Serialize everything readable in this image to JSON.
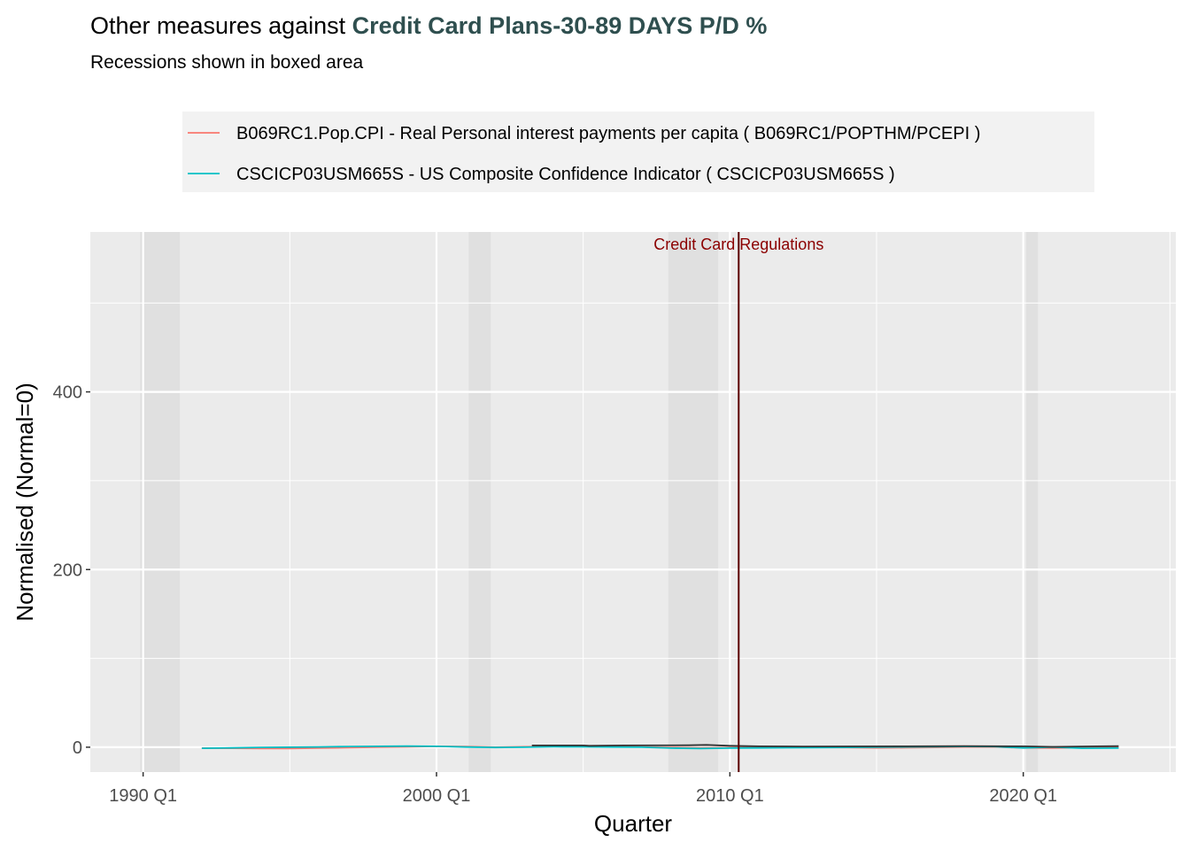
{
  "chart_data": {
    "type": "line",
    "title_prefix": "Other measures against ",
    "title_highlight": "Credit Card Plans-30-89 DAYS P/D %",
    "subtitle": "Recessions shown in boxed area",
    "xlabel": "Quarter",
    "ylabel": "Normalised (Normal=0)",
    "x_tick_labels": [
      "1990 Q1",
      "2000 Q1",
      "2010 Q1",
      "2020 Q1"
    ],
    "x_ticks": [
      1990,
      2000,
      2010,
      2020
    ],
    "y_ticks": [
      0,
      200,
      400
    ],
    "xlim": [
      1988.2,
      2025.2
    ],
    "ylim": [
      -28,
      580
    ],
    "grid": true,
    "legend_position": "top",
    "recessions": [
      [
        1989.9,
        1991.25
      ],
      [
        2001.1,
        2001.85
      ],
      [
        2007.9,
        2009.6
      ],
      [
        2020.1,
        2020.5
      ]
    ],
    "annotation": {
      "label": "Credit Card Regulations",
      "x": 2010.3,
      "color": "#8b0000"
    },
    "series": [
      {
        "name": "B069RC1.Pop.CPI - Real Personal interest payments per capita ( B069RC1/POPTHM/PCEPI )",
        "color": "#f8766d",
        "x": [
          1992.0,
          1993.0,
          1994.0,
          1995.0,
          1996.0,
          1997.0,
          1998.0,
          1999.0,
          2000.0,
          2001.0,
          2002.0,
          2003.0,
          2004.0,
          2005.0,
          2006.0,
          2007.0,
          2008.0,
          2009.0,
          2010.0,
          2011.0,
          2012.0,
          2013.0,
          2014.0,
          2015.0,
          2016.0,
          2017.0,
          2018.0,
          2019.0,
          2020.0,
          2021.0,
          2022.0,
          2023.25
        ],
        "y": [
          -1.0,
          -1.2,
          -1.4,
          -1.5,
          -0.9,
          -0.5,
          0.0,
          0.4,
          1.0,
          0.8,
          0.0,
          0.5,
          1.0,
          0.8,
          0.6,
          0.3,
          -0.2,
          -0.8,
          -0.5,
          -0.3,
          0.0,
          -0.2,
          -0.5,
          -0.8,
          -0.6,
          -0.2,
          0.2,
          0.3,
          -0.8,
          -1.0,
          -0.6,
          -0.4
        ]
      },
      {
        "name": "CSCICP03USM665S - US Composite Confidence Indicator ( CSCICP03USM665S )",
        "color": "#00bfc4",
        "x": [
          1992.0,
          1993.0,
          1994.0,
          1995.0,
          1996.0,
          1997.0,
          1998.0,
          1999.0,
          2000.0,
          2001.0,
          2002.0,
          2003.0,
          2004.0,
          2005.0,
          2006.0,
          2007.0,
          2008.0,
          2009.0,
          2010.0,
          2011.0,
          2012.0,
          2013.0,
          2014.0,
          2015.0,
          2016.0,
          2017.0,
          2018.0,
          2019.0,
          2020.0,
          2021.0,
          2022.0,
          2023.25
        ],
        "y": [
          -1.2,
          -0.8,
          -0.2,
          0.0,
          0.3,
          0.8,
          1.0,
          1.2,
          1.0,
          0.2,
          -0.3,
          0.0,
          0.5,
          0.4,
          0.2,
          0.0,
          -1.0,
          -1.5,
          -1.0,
          -0.8,
          -0.6,
          -0.4,
          -0.2,
          0.0,
          0.3,
          0.6,
          0.8,
          0.7,
          -0.8,
          0.2,
          -1.2,
          -1.0
        ]
      },
      {
        "name": "Credit Card Plans-30-89 DAYS P/D %",
        "color": "#333333",
        "x": [
          2003.25,
          2005.0,
          2005.2,
          2006.4,
          2008.6,
          2009.2,
          2010.0,
          2011.0,
          2012.5,
          2014.0,
          2016.0,
          2018.0,
          2020.0,
          2021.0,
          2022.5,
          2023.25
        ],
        "y": [
          2.0,
          2.0,
          1.6,
          2.0,
          2.2,
          2.6,
          1.6,
          1.0,
          0.8,
          0.9,
          1.0,
          1.3,
          1.0,
          0.4,
          1.0,
          1.2
        ]
      }
    ]
  }
}
